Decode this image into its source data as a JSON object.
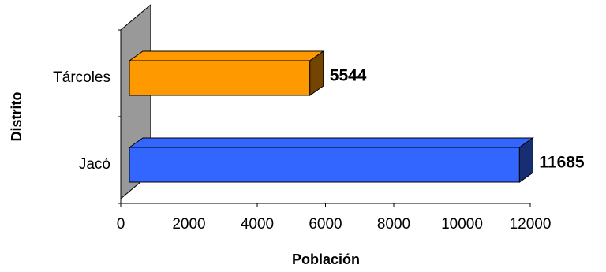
{
  "chart_data": {
    "type": "bar",
    "orientation": "horizontal",
    "three_d": true,
    "categories": [
      "Tárcoles",
      "Jacó"
    ],
    "values": [
      5544,
      11685
    ],
    "colors": [
      "#FF9900",
      "#3366FF"
    ],
    "data_labels": [
      "5544",
      "11685"
    ],
    "xlabel": "Población",
    "ylabel": "Distrito",
    "xlim": [
      0,
      12000
    ],
    "xticks": [
      "0",
      "2000",
      "4000",
      "6000",
      "8000",
      "10000",
      "12000"
    ],
    "grid": false,
    "legend": "none",
    "wall_color": "#999999"
  }
}
